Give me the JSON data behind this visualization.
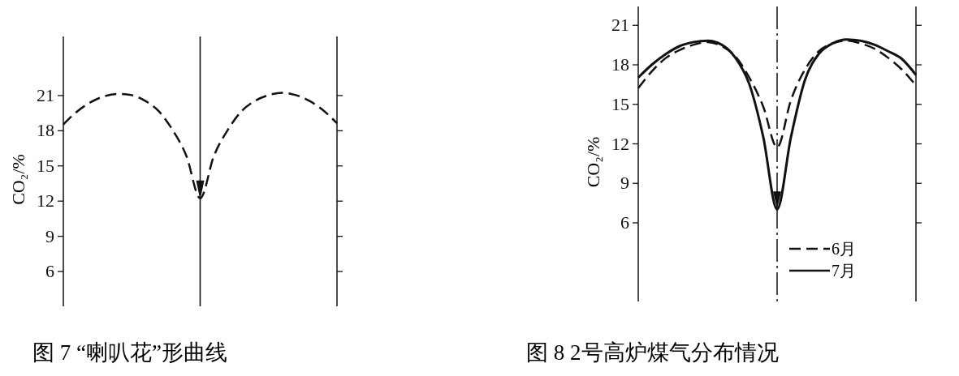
{
  "chart_data": [
    {
      "type": "line",
      "title": "图 7 “喇叭花”形曲线",
      "ylabel": "CO₂/%",
      "categories": [
        null,
        null,
        null,
        null,
        null,
        null,
        null,
        null,
        null,
        null,
        null,
        null,
        null,
        null,
        null,
        null,
        null,
        null,
        null,
        null,
        null
      ],
      "ylim": [
        3,
        26
      ],
      "yticks": [
        6,
        9,
        12,
        15,
        18,
        21
      ],
      "marker": "none",
      "series": [
        {
          "color": "#111111",
          "line_style": "dashed",
          "values": [
            18.5,
            19.6,
            20.4,
            20.9,
            21.1,
            21.0,
            20.5,
            19.6,
            18.0,
            15.8,
            12.2,
            15.8,
            18.0,
            19.6,
            20.5,
            21.0,
            21.2,
            21.0,
            20.5,
            19.7,
            18.6
          ]
        }
      ]
    },
    {
      "type": "line",
      "title": "图 8 2号高炉煤气分布情况",
      "ylabel": "CO₂/%",
      "categories": [
        null,
        null,
        null,
        null,
        null,
        null,
        null,
        null,
        null,
        null,
        null,
        null,
        null,
        null,
        null,
        null,
        null,
        null,
        null,
        null,
        null
      ],
      "ylim": [
        0,
        22.4
      ],
      "yticks": [
        6,
        9,
        12,
        15,
        18,
        21
      ],
      "marker": "none",
      "legend": "bottom",
      "series": [
        {
          "name": "6月",
          "color": "#111111",
          "line_style": "dashed",
          "values": [
            16.2,
            17.5,
            18.5,
            19.1,
            19.5,
            19.7,
            19.4,
            18.6,
            17.0,
            14.8,
            11.7,
            15.3,
            17.6,
            19.0,
            19.6,
            19.8,
            19.6,
            19.2,
            18.5,
            17.6,
            16.4
          ]
        },
        {
          "name": "7月",
          "color": "#111111",
          "line_style": "solid",
          "values": [
            17.0,
            18.0,
            18.8,
            19.4,
            19.7,
            19.8,
            19.5,
            18.5,
            16.5,
            12.5,
            7.0,
            12.5,
            16.8,
            18.8,
            19.6,
            19.9,
            19.8,
            19.5,
            19.0,
            18.4,
            17.2
          ]
        }
      ]
    }
  ]
}
